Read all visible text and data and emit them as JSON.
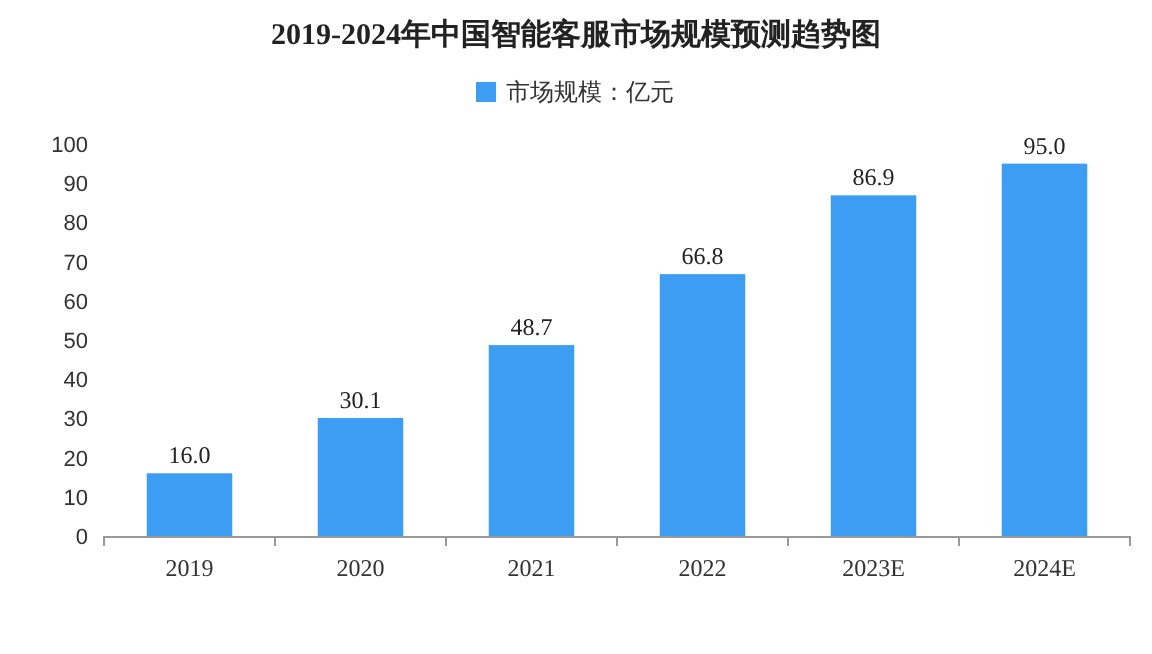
{
  "chart_data": {
    "type": "bar",
    "title": "2019-2024年中国智能客服市场规模预测趋势图",
    "categories": [
      "2019",
      "2020",
      "2021",
      "2022",
      "2023E",
      "2024E"
    ],
    "series": [
      {
        "name": "市场规模：亿元",
        "color": "#3d9df2",
        "values": [
          16.0,
          30.1,
          48.7,
          66.8,
          86.9,
          95.0
        ],
        "value_labels": [
          "16.0",
          "30.1",
          "48.7",
          "66.8",
          "86.9",
          "95.0"
        ]
      }
    ],
    "ylim": [
      0,
      100
    ],
    "yticks": [
      0,
      10,
      20,
      30,
      40,
      50,
      60,
      70,
      80,
      90,
      100
    ],
    "legend": "top"
  }
}
